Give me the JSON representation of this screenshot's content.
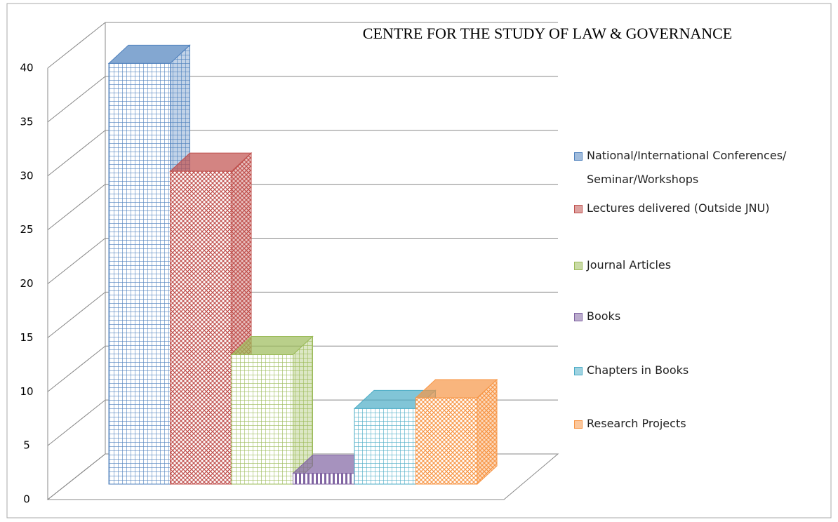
{
  "chart_data": {
    "type": "bar3d",
    "title": "CENTRE FOR THE STUDY OF LAW & GOVERNANCE",
    "categories": [
      null
    ],
    "series": [
      {
        "name": "National/International Conferences/ Seminar/Workshops",
        "color": "#4f81bd",
        "values": [
          39
        ]
      },
      {
        "name": "Lectures delivered (Outside JNU)",
        "color": "#c0504d",
        "values": [
          29
        ]
      },
      {
        "name": "Journal Articles",
        "color": "#9bbb59",
        "values": [
          12
        ]
      },
      {
        "name": "Books",
        "color": "#8064a2",
        "values": [
          1
        ]
      },
      {
        "name": "Chapters in Books",
        "color": "#4bacc6",
        "values": [
          7
        ]
      },
      {
        "name": "Research Projects",
        "color": "#f79646",
        "values": [
          8
        ]
      }
    ],
    "ylim": [
      0,
      40
    ],
    "yticks": [
      0,
      5,
      10,
      15,
      20,
      25,
      30,
      35,
      40
    ],
    "grid": true,
    "legend": "right"
  }
}
